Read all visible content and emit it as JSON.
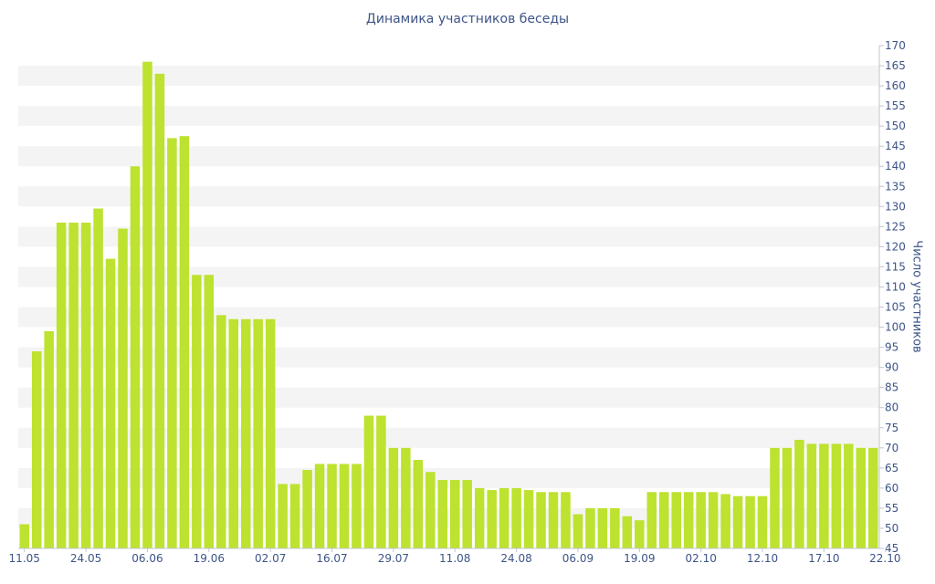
{
  "chart_data": {
    "type": "bar",
    "title": "Динамика участников беседы",
    "xlabel": "",
    "ylabel": "Число участников",
    "ylim": [
      45,
      170
    ],
    "y_ticks": [
      45,
      50,
      55,
      60,
      65,
      70,
      75,
      80,
      85,
      90,
      95,
      100,
      105,
      110,
      115,
      120,
      125,
      130,
      135,
      140,
      145,
      150,
      155,
      160,
      165,
      170
    ],
    "y_axis_position": "right",
    "grid": "horizontal bands",
    "x_tick_labels": [
      "11.05",
      "24.05",
      "06.06",
      "19.06",
      "02.07",
      "16.07",
      "29.07",
      "11.08",
      "24.08",
      "06.09",
      "19.09",
      "02.10",
      "12.10",
      "17.10",
      "22.10"
    ],
    "x_tick_indices": [
      0,
      5,
      10,
      15,
      20,
      25,
      30,
      35,
      40,
      45,
      50,
      55,
      60,
      65,
      70
    ],
    "values": [
      51,
      94,
      99,
      126,
      126,
      126,
      129.5,
      117,
      124.5,
      140,
      166,
      163,
      147,
      147.5,
      113,
      113,
      103,
      102,
      102,
      102,
      102,
      61,
      61,
      64.5,
      66,
      66,
      66,
      66,
      78,
      78,
      70,
      70,
      67,
      64,
      62,
      62,
      62,
      60,
      59.5,
      60,
      60,
      59.5,
      59,
      59,
      59,
      53.5,
      55,
      55,
      55,
      53,
      52,
      59,
      59,
      59,
      59,
      59,
      59,
      58.5,
      58,
      58,
      58,
      70,
      70,
      72,
      71,
      71,
      71,
      71,
      70,
      70
    ],
    "bar_color": "#bde22f"
  }
}
